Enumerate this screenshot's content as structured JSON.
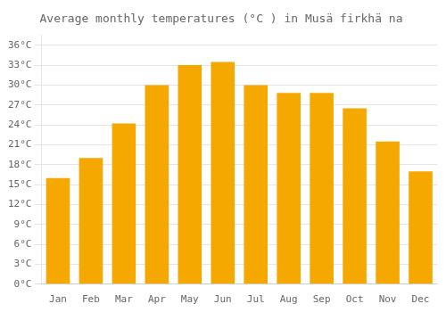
{
  "chart_data": {
    "type": "bar",
    "title": "Average monthly temperatures (°C ) in Musä firkhä na",
    "categories": [
      "Jan",
      "Feb",
      "Mar",
      "Apr",
      "May",
      "Jun",
      "Jul",
      "Aug",
      "Sep",
      "Oct",
      "Nov",
      "Dec"
    ],
    "values": [
      16.0,
      19.0,
      24.2,
      30.0,
      33.0,
      33.5,
      30.0,
      28.8,
      28.8,
      26.5,
      21.5,
      17.0
    ],
    "color": "#F5A800",
    "ylim": [
      0,
      37.5
    ],
    "yticks": [
      {
        "value": 0,
        "label": "0°C"
      },
      {
        "value": 3,
        "label": "3°C"
      },
      {
        "value": 6,
        "label": "6°C"
      },
      {
        "value": 9,
        "label": "9°C"
      },
      {
        "value": 12,
        "label": "12°C"
      },
      {
        "value": 15,
        "label": "15°C"
      },
      {
        "value": 18,
        "label": "18°C"
      },
      {
        "value": 21,
        "label": "21°C"
      },
      {
        "value": 24,
        "label": "24°C"
      },
      {
        "value": 27,
        "label": "27°C"
      },
      {
        "value": 30,
        "label": "30°C"
      },
      {
        "value": 33,
        "label": "33°C"
      },
      {
        "value": 36,
        "label": "36°C"
      }
    ],
    "grid": true
  }
}
